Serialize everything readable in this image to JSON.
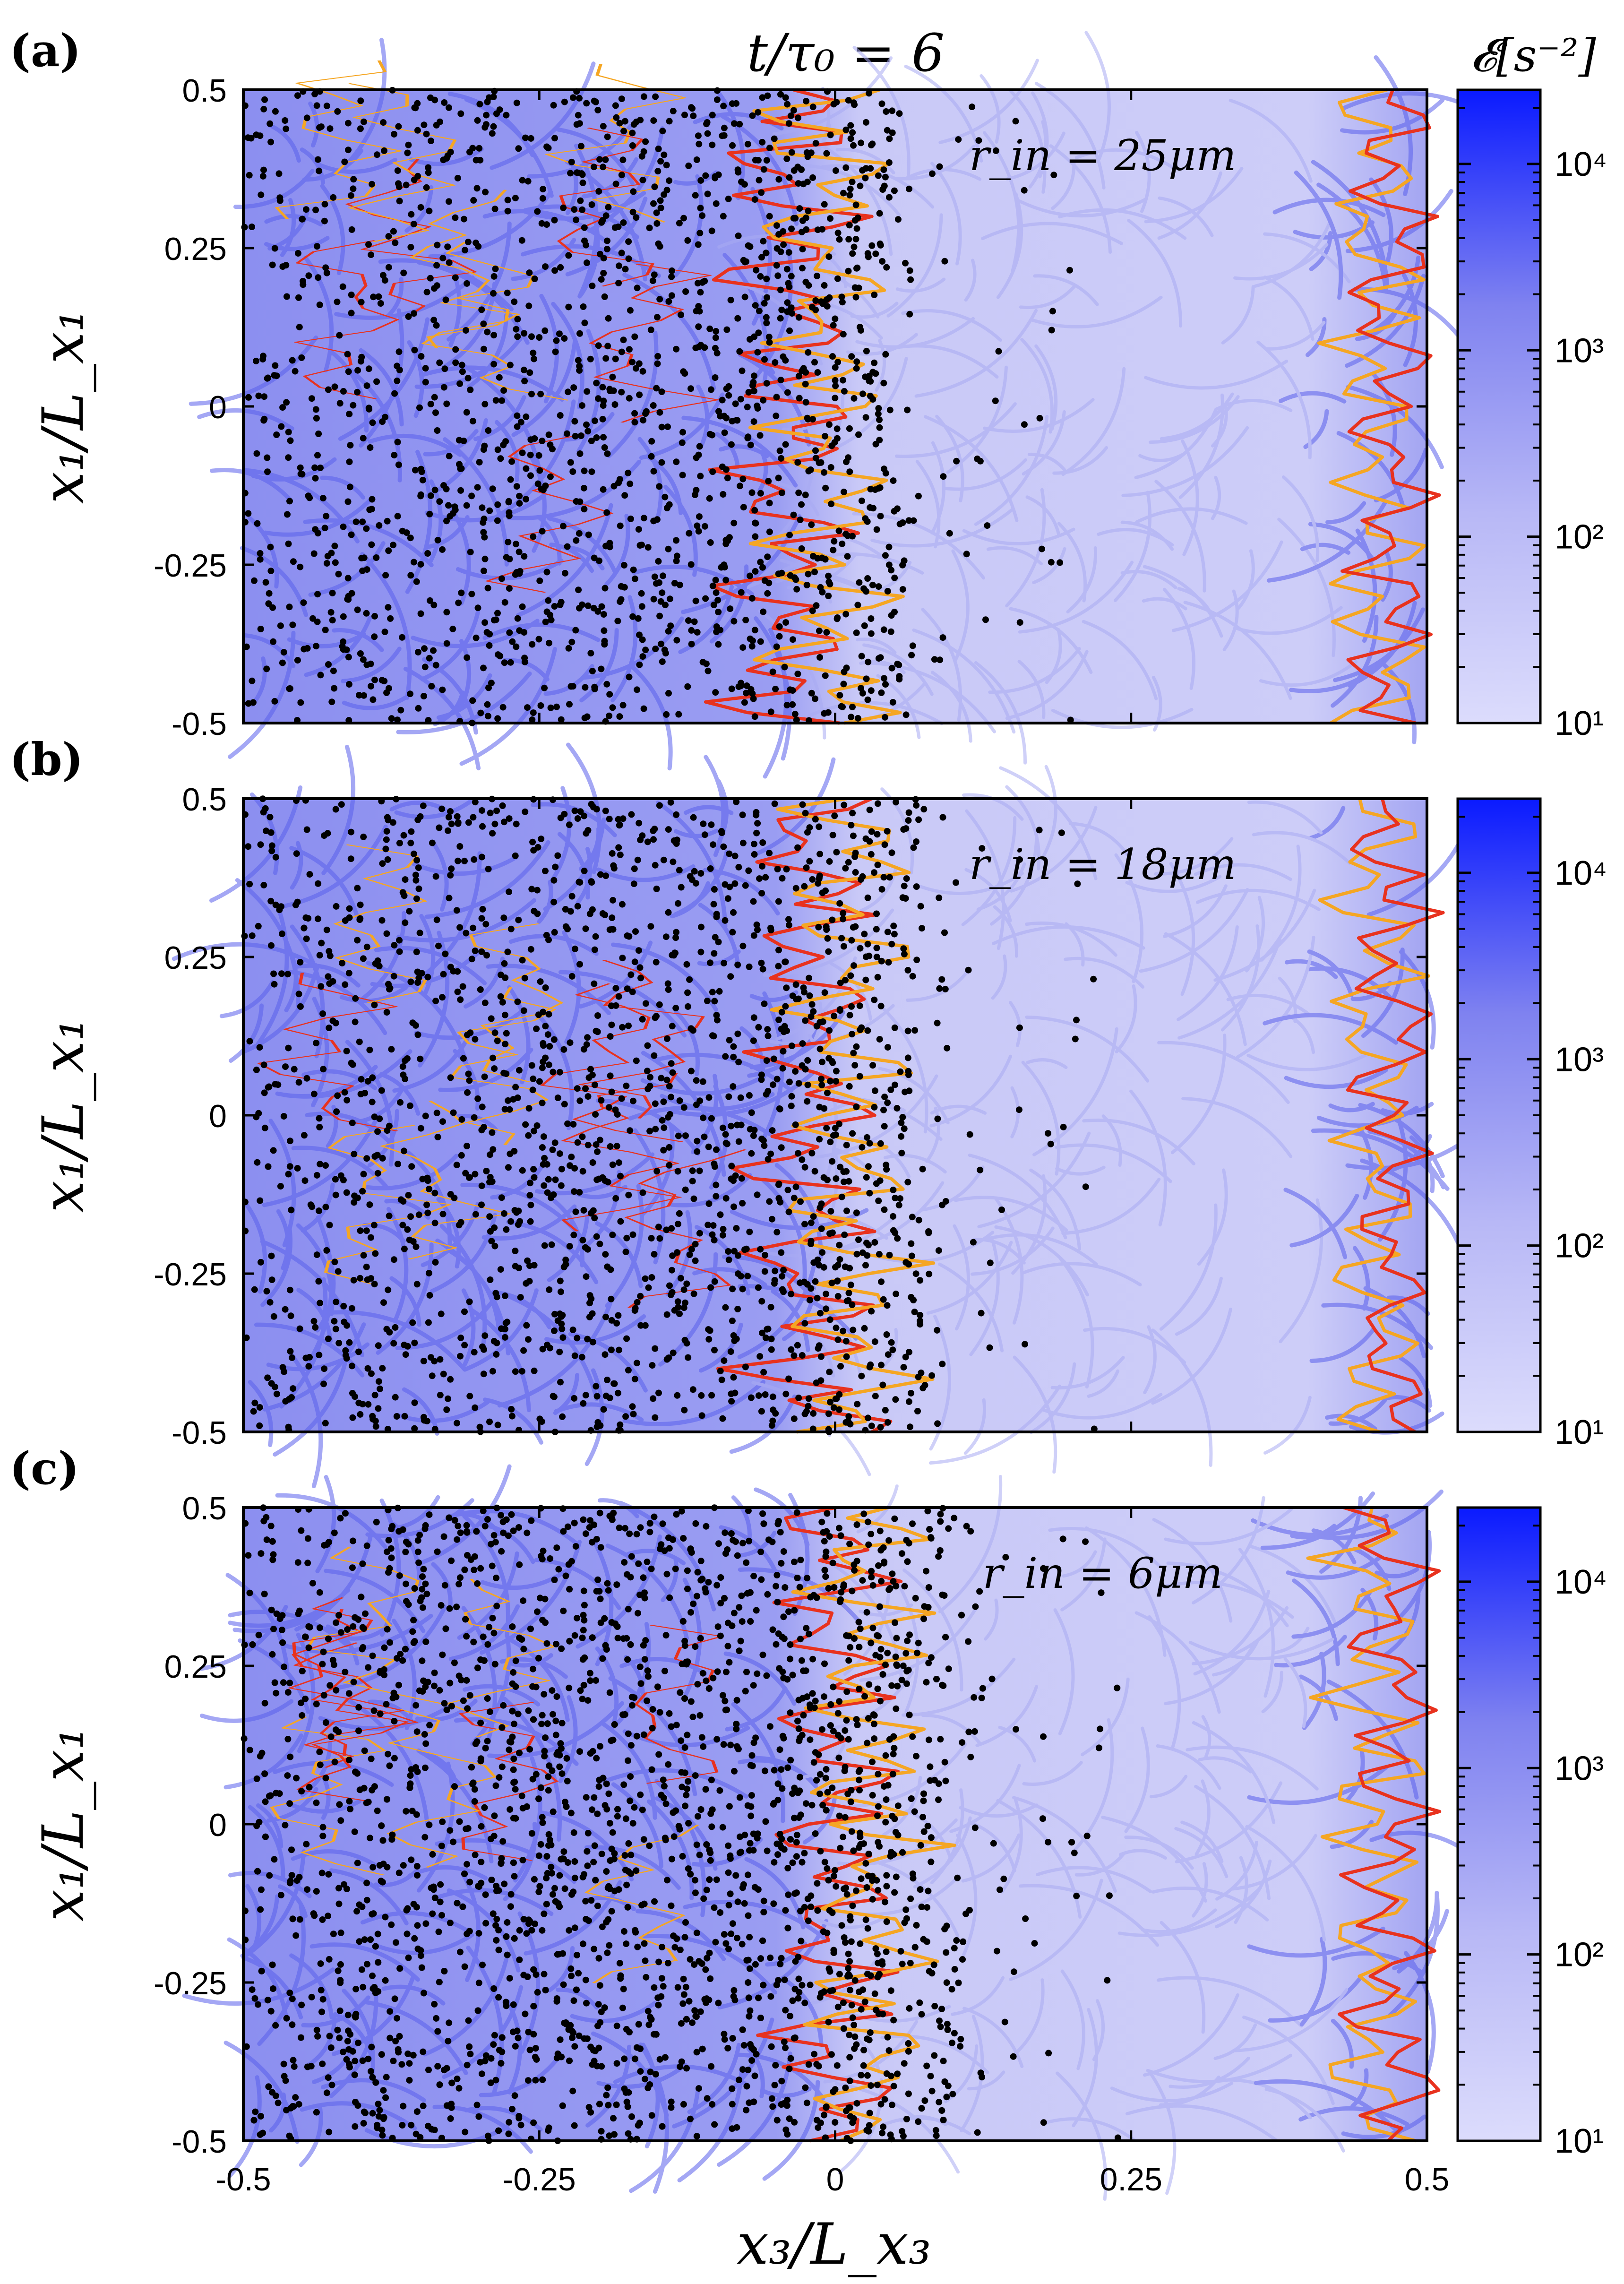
{
  "chart_data": {
    "type": "heatmap",
    "title": "t/τ₀ = 6",
    "xlabel": "x₃/L_x₃",
    "ylabel": "x₁/L_x₁",
    "xlim": [
      -0.5,
      0.5
    ],
    "ylim": [
      -0.5,
      0.5
    ],
    "x_ticks": [
      "-0.5",
      "-0.25",
      "0",
      "0.25",
      "0.5"
    ],
    "y_ticks": [
      "0.5",
      "0.25",
      "0",
      "-0.25",
      "-0.5"
    ],
    "colorbar": {
      "label": "𝓔[s⁻²]",
      "scale": "log",
      "range": [
        10,
        25000
      ],
      "ticks": [
        "10¹",
        "10²",
        "10³",
        "10⁴"
      ],
      "color_low": "#dcdcfc",
      "color_high": "#0a1aff"
    },
    "contour_colors": [
      "#e8321e",
      "#f5a623"
    ],
    "particle_color": "#000000",
    "panels": [
      {
        "letter": "(a)",
        "annotation": "r_in = 25μm",
        "front_x": 0.0,
        "particle_count": 1600,
        "spread": 0.04
      },
      {
        "letter": "(b)",
        "annotation": "r_in = 18μm",
        "front_x": 0.02,
        "particle_count": 1700,
        "spread": 0.05
      },
      {
        "letter": "(c)",
        "annotation": "r_in = 6μm",
        "front_x": 0.04,
        "particle_count": 2600,
        "spread": 0.07
      }
    ]
  }
}
